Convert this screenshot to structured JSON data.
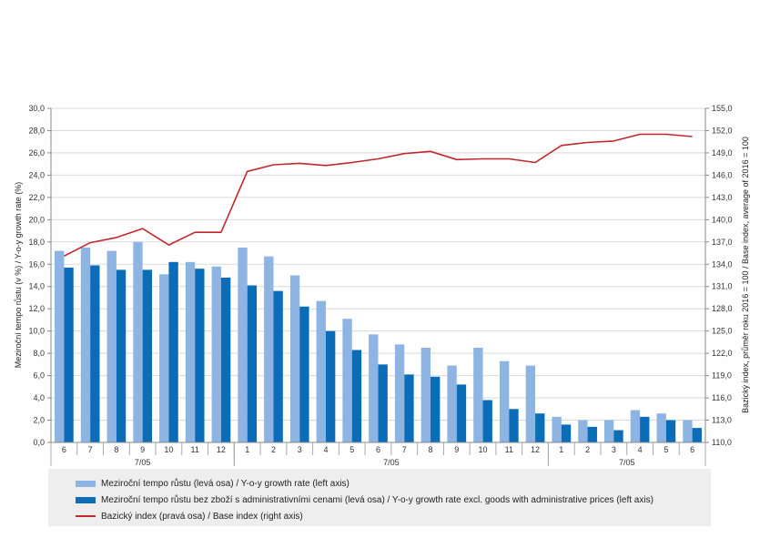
{
  "chart_data": {
    "type": "bar",
    "categories": [
      "6",
      "7",
      "8",
      "9",
      "10",
      "11",
      "12",
      "1",
      "2",
      "3",
      "4",
      "5",
      "6",
      "7",
      "8",
      "9",
      "10",
      "11",
      "12",
      "1",
      "2",
      "3",
      "4",
      "5",
      "6"
    ],
    "group_labels": [
      "7/05",
      "7/05",
      "7/05"
    ],
    "series": [
      {
        "name": "Meziroční tempo růstu (levá osa) / Y-o-y growth rate (left axis)",
        "axis": "left",
        "kind": "bar",
        "color": "#8db4e2",
        "values": [
          17.2,
          17.5,
          17.2,
          18.0,
          15.1,
          16.2,
          15.8,
          17.5,
          16.7,
          15.0,
          12.7,
          11.1,
          9.7,
          8.8,
          8.5,
          6.9,
          8.5,
          7.3,
          6.9,
          2.3,
          2.0,
          2.0,
          2.9,
          2.6,
          2.0
        ]
      },
      {
        "name": "Meziroční tempo růstu bez zboží s administrativními cenami (levá osa) / Y-o-y growth rate excl. goods with administrative prices (left axis)",
        "axis": "left",
        "kind": "bar",
        "color": "#0b6db7",
        "values": [
          15.7,
          15.9,
          15.5,
          15.5,
          16.2,
          15.6,
          14.8,
          14.1,
          13.6,
          12.2,
          10.0,
          8.3,
          7.0,
          6.1,
          5.9,
          5.2,
          3.8,
          3.0,
          2.6,
          1.6,
          1.4,
          1.1,
          2.3,
          2.0,
          1.3
        ]
      },
      {
        "name": "Bazický index (pravá osa) / Base index (right axis)",
        "axis": "right",
        "kind": "line",
        "color": "#c0282d",
        "values": [
          135.1,
          136.9,
          137.6,
          138.8,
          136.6,
          138.3,
          138.3,
          146.5,
          147.4,
          147.6,
          147.3,
          147.7,
          148.2,
          148.9,
          149.2,
          148.1,
          148.2,
          148.2,
          147.7,
          150.0,
          150.4,
          150.6,
          151.5,
          151.5,
          151.2
        ]
      }
    ],
    "y_left": {
      "label": "Meziroční tempo růstu (v %) / Y-o-y growth rate (%)",
      "ylim": [
        0,
        30
      ],
      "ticks": [
        "0,0",
        "2,0",
        "4,0",
        "6,0",
        "8,0",
        "10,0",
        "12,0",
        "14,0",
        "16,0",
        "18,0",
        "20,0",
        "22,0",
        "24,0",
        "26,0",
        "28,0",
        "30,0"
      ]
    },
    "y_right": {
      "label": "Bazický index, průměr roku 2016 = 100 / Base index, average of 2016 = 100",
      "ylim": [
        110,
        155
      ],
      "ticks": [
        "110,0",
        "113,0",
        "116,0",
        "119,0",
        "122,0",
        "125,0",
        "128,0",
        "131,0",
        "134,0",
        "137,0",
        "140,0",
        "143,0",
        "146,0",
        "149,0",
        "152,0",
        "155,0"
      ]
    },
    "grid": true,
    "legend_position": "bottom"
  }
}
